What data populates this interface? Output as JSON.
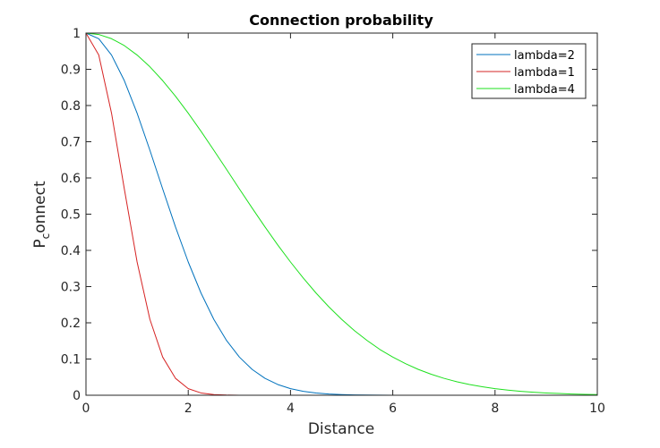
{
  "chart_data": {
    "type": "line",
    "title": "Connection probability",
    "xlabel": "Distance",
    "ylabel": {
      "main": "P",
      "sub": "c",
      "rest": "onnect"
    },
    "xlim": [
      0,
      10
    ],
    "ylim": [
      0,
      1
    ],
    "xticks": [
      0,
      2,
      4,
      6,
      8,
      10
    ],
    "xtick_labels": [
      "0",
      "2",
      "4",
      "6",
      "8",
      "10"
    ],
    "yticks": [
      0,
      0.1,
      0.2,
      0.3,
      0.4,
      0.5,
      0.6,
      0.7,
      0.8,
      0.9,
      1
    ],
    "ytick_labels": [
      "0",
      "0.1",
      "0.2",
      "0.3",
      "0.4",
      "0.5",
      "0.6",
      "0.7",
      "0.8",
      "0.9",
      "1"
    ],
    "grid": false,
    "legend_position": "top-right",
    "x": [
      0,
      0.25,
      0.5,
      0.75,
      1,
      1.25,
      1.5,
      1.75,
      2,
      2.25,
      2.5,
      2.75,
      3,
      3.25,
      3.5,
      3.75,
      4,
      4.25,
      4.5,
      4.75,
      5,
      5.25,
      5.5,
      5.75,
      6,
      6.25,
      6.5,
      6.75,
      7,
      7.25,
      7.5,
      7.75,
      8,
      8.25,
      8.5,
      8.75,
      9,
      9.25,
      9.5,
      9.75,
      10
    ],
    "series": [
      {
        "name": "lambda=2",
        "color": "#0072BD",
        "values": [
          1,
          0.9845,
          0.9394,
          0.8688,
          0.7788,
          0.6766,
          0.5698,
          0.465,
          0.3679,
          0.2821,
          0.2096,
          0.151,
          0.1054,
          0.0713,
          0.0468,
          0.0297,
          0.0183,
          0.0109,
          0.0063,
          0.0035,
          0.0019,
          0.001,
          0.0005,
          0.0003,
          0.0001,
          0.0001,
          0,
          0,
          0,
          0,
          0,
          0,
          0,
          0,
          0,
          0,
          0,
          0,
          0,
          0,
          0
        ]
      },
      {
        "name": "lambda=1",
        "color": "#D62424",
        "values": [
          1,
          0.9394,
          0.7788,
          0.5698,
          0.3679,
          0.2096,
          0.1054,
          0.0468,
          0.0183,
          0.0063,
          0.0019,
          0.0005,
          0.0001,
          0,
          0,
          0,
          0,
          0,
          0,
          0,
          0,
          0,
          0,
          0,
          0,
          0,
          0,
          0,
          0,
          0,
          0,
          0,
          0,
          0,
          0,
          0,
          0,
          0,
          0,
          0,
          0
        ]
      },
      {
        "name": "lambda=4",
        "color": "#1EE01E",
        "values": [
          1,
          0.9961,
          0.9845,
          0.9655,
          0.9394,
          0.907,
          0.8688,
          0.8258,
          0.7788,
          0.7288,
          0.6766,
          0.6234,
          0.5698,
          0.5168,
          0.465,
          0.415,
          0.3679,
          0.3237,
          0.2821,
          0.2442,
          0.2096,
          0.1785,
          0.151,
          0.1262,
          0.1054,
          0.0871,
          0.0713,
          0.058,
          0.0468,
          0.0374,
          0.0297,
          0.0234,
          0.0183,
          0.0142,
          0.0109,
          0.0083,
          0.0063,
          0.0048,
          0.0035,
          0.0026,
          0.0019
        ]
      }
    ]
  }
}
